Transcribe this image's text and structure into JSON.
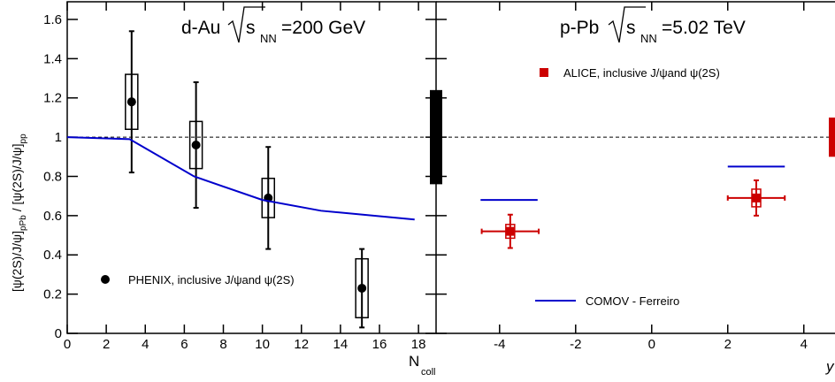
{
  "chart_data": [
    {
      "type": "scatter",
      "title": {
        "prefix": "d-Au",
        "radicand": "s",
        "subscript": "NN",
        "suffix": "=200 GeV"
      },
      "y_label": {
        "num": "[ψ(2S)/J/ψ]",
        "num_sub": "pPb",
        "den": "/ [ψ(2S)/J/ψ]",
        "den_sub": "pp"
      },
      "x_label": {
        "main": "N",
        "sub": "coll"
      },
      "xlim": [
        0,
        18.9
      ],
      "xticks": [
        0,
        2,
        4,
        6,
        8,
        10,
        12,
        14,
        16,
        18
      ],
      "ylim": [
        0,
        1.69
      ],
      "yticks": [
        0,
        0.2,
        0.4,
        0.6,
        0.8,
        1,
        1.2,
        1.4,
        1.6
      ],
      "reference": 1,
      "global_syst": {
        "value": 1,
        "err": 0.24,
        "color": "#000000"
      },
      "series": [
        {
          "name": "PHENIX, inclusive J/ψand ψ(2S)",
          "color": "#000000",
          "marker": "circle",
          "x": [
            3.3,
            6.6,
            10.3,
            15.1
          ],
          "values": [
            1.18,
            0.96,
            0.69,
            0.23
          ],
          "stat_err": [
            0.36,
            0.32,
            0.26,
            0.2
          ],
          "syst_err": [
            0.14,
            0.12,
            0.1,
            0.15
          ]
        },
        {
          "color": "#0000cc",
          "style": "line",
          "x": [
            0,
            3.2,
            6.5,
            10,
            13,
            17.8
          ],
          "values": [
            1.0,
            0.99,
            0.8,
            0.68,
            0.625,
            0.58
          ]
        }
      ]
    },
    {
      "type": "scatter",
      "title": {
        "prefix": "p-Pb",
        "radicand": "s",
        "subscript": "NN",
        "suffix": "=5.02 TeV"
      },
      "x_label": "y",
      "xlim": [
        -5.67,
        4.82
      ],
      "xticks": [
        -4,
        -2,
        0,
        2,
        4
      ],
      "ylim": [
        0,
        1.69
      ],
      "yticks": [
        0,
        0.2,
        0.4,
        0.6,
        0.8,
        1,
        1.2,
        1.4,
        1.6
      ],
      "reference": 1,
      "global_syst": {
        "value": 1,
        "err": 0.1,
        "color": "#cc0000"
      },
      "series": [
        {
          "name": "ALICE, inclusive J/ψand ψ(2S)",
          "color": "#cc0000",
          "marker": "square",
          "x": [
            -3.72,
            2.75
          ],
          "xerr": [
            0.75,
            0.75
          ],
          "values": [
            0.52,
            0.69
          ],
          "stat_err": [
            0.085,
            0.09
          ],
          "syst_err": [
            0.035,
            0.045
          ]
        },
        {
          "name": "COMOV - Ferreiro",
          "color": "#0000cc",
          "style": "hbar",
          "x": [
            -3.75,
            2.75
          ],
          "xerr": [
            0.75,
            0.75
          ],
          "values": [
            0.68,
            0.85
          ]
        }
      ]
    }
  ]
}
